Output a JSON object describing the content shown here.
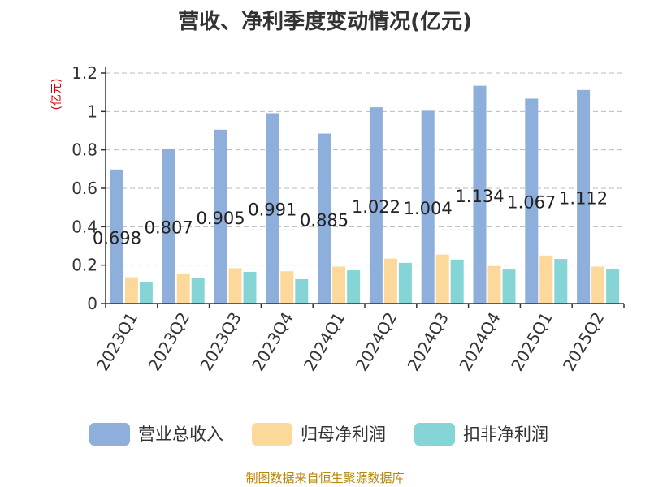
{
  "chart_data": {
    "type": "bar",
    "title": "营收、净利季度变动情况(亿元)",
    "ylabel": "(亿元)",
    "xlabel": "",
    "categories": [
      "2023Q1",
      "2023Q2",
      "2023Q3",
      "2023Q4",
      "2024Q1",
      "2024Q2",
      "2024Q3",
      "2024Q4",
      "2025Q1",
      "2025Q2"
    ],
    "ylim": [
      0,
      1.2
    ],
    "yticks": [
      "0",
      "0.2",
      "0.4",
      "0.6",
      "0.8",
      "1",
      "1.2"
    ],
    "grid": true,
    "legend_position": "bottom",
    "series": [
      {
        "name": "营业总收入",
        "color": "#8eaedb",
        "values": [
          0.698,
          0.807,
          0.905,
          0.991,
          0.885,
          1.022,
          1.004,
          1.134,
          1.067,
          1.112
        ],
        "labels": [
          "0.698",
          "0.807",
          "0.905",
          "0.991",
          "0.885",
          "1.022",
          "1.004",
          "1.134",
          "1.067",
          "1.112"
        ]
      },
      {
        "name": "归母净利润",
        "color": "#fdd89b",
        "values": [
          0.137,
          0.157,
          0.184,
          0.168,
          0.192,
          0.234,
          0.255,
          0.195,
          0.25,
          0.192
        ]
      },
      {
        "name": "扣非净利润",
        "color": "#86d5d6",
        "values": [
          0.113,
          0.132,
          0.165,
          0.127,
          0.173,
          0.212,
          0.229,
          0.177,
          0.232,
          0.178
        ]
      }
    ]
  },
  "source": "制图数据来自恒生聚源数据库",
  "colors": {
    "axis": "#333333",
    "grid": "#bbbbbb",
    "ylabel": "#cc0000",
    "label": "#222222"
  }
}
